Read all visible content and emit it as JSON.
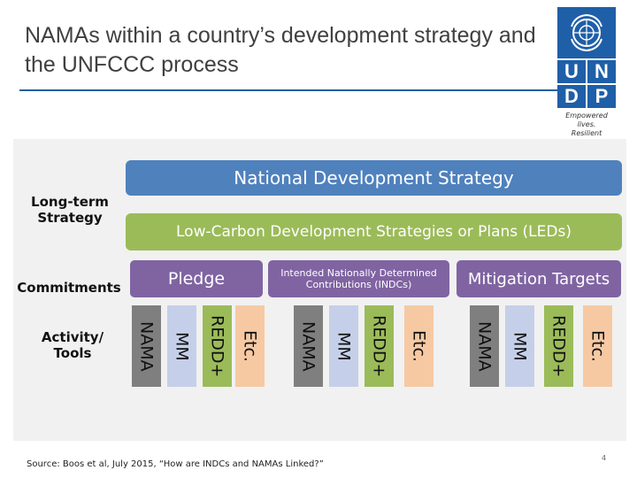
{
  "title": "NAMAs within a country’s development strategy and the UNFCCC process",
  "logo": {
    "letters": [
      "U",
      "N",
      "D",
      "P"
    ],
    "tagline_line1": "Empowered lives.",
    "tagline_line2": "Resilient nations."
  },
  "labels": {
    "long_term": "Long-term Strategy",
    "commitments": "Commitments",
    "activity_tools": "Activity/ Tools"
  },
  "bars": {
    "nds": "National Development Strategy",
    "leds": "Low-Carbon Development Strategies or Plans (LEDs)"
  },
  "commitment_boxes": {
    "pledge": "Pledge",
    "indc": "Intended Nationally Determined Contributions (INDCs)",
    "mitigation": "Mitigation Targets"
  },
  "tools": {
    "nama": "NAMA",
    "mm": "MM",
    "redd": "REDD+",
    "etc": "Etc."
  },
  "colors": {
    "nds": "#4f81bd",
    "leds": "#9bbb59",
    "commitments": "#8064a2",
    "nama": "#7f7f7f",
    "mm": "#c5cfe9",
    "redd": "#9bbb59",
    "etc": "#f6c9a3",
    "undp_blue": "#1f5fa8"
  },
  "source": "Source: Boos et al, July 2015, “How are INDCs and NAMAs Linked?”",
  "page_number": "4"
}
